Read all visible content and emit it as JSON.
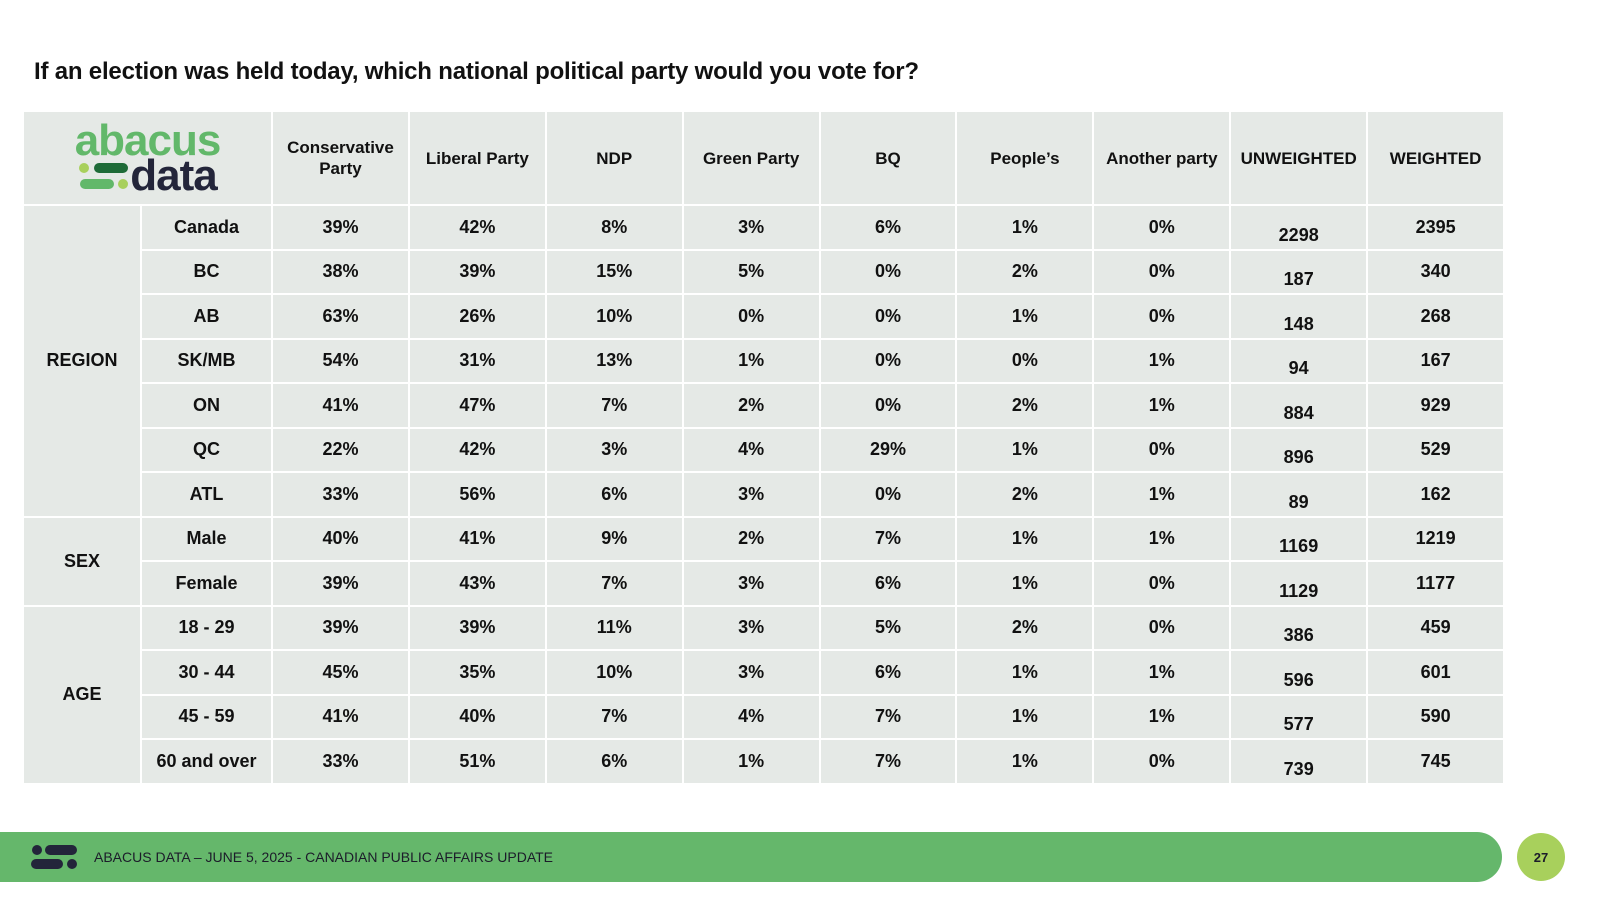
{
  "title": "If an election was held today, which national political party would you vote for?",
  "logo": {
    "top": "abacus",
    "bottom": "data"
  },
  "headers": [
    "Conservative Party",
    "Liberal Party",
    "NDP",
    "Green Party",
    "BQ",
    "People’s",
    "Another party",
    "UNWEIGHTED",
    "WEIGHTED"
  ],
  "groups": [
    {
      "label": "REGION",
      "rows": [
        {
          "label": "Canada",
          "values": [
            "39%",
            "42%",
            "8%",
            "3%",
            "6%",
            "1%",
            "0%",
            "2298",
            "2395"
          ]
        },
        {
          "label": "BC",
          "values": [
            "38%",
            "39%",
            "15%",
            "5%",
            "0%",
            "2%",
            "0%",
            "187",
            "340"
          ]
        },
        {
          "label": "AB",
          "values": [
            "63%",
            "26%",
            "10%",
            "0%",
            "0%",
            "1%",
            "0%",
            "148",
            "268"
          ]
        },
        {
          "label": "SK/MB",
          "values": [
            "54%",
            "31%",
            "13%",
            "1%",
            "0%",
            "0%",
            "1%",
            "94",
            "167"
          ]
        },
        {
          "label": "ON",
          "values": [
            "41%",
            "47%",
            "7%",
            "2%",
            "0%",
            "2%",
            "1%",
            "884",
            "929"
          ]
        },
        {
          "label": "QC",
          "values": [
            "22%",
            "42%",
            "3%",
            "4%",
            "29%",
            "1%",
            "0%",
            "896",
            "529"
          ]
        },
        {
          "label": "ATL",
          "values": [
            "33%",
            "56%",
            "6%",
            "3%",
            "0%",
            "2%",
            "1%",
            "89",
            "162"
          ]
        }
      ]
    },
    {
      "label": "SEX",
      "rows": [
        {
          "label": "Male",
          "values": [
            "40%",
            "41%",
            "9%",
            "2%",
            "7%",
            "1%",
            "1%",
            "1169",
            "1219"
          ]
        },
        {
          "label": "Female",
          "values": [
            "39%",
            "43%",
            "7%",
            "3%",
            "6%",
            "1%",
            "0%",
            "1129",
            "1177"
          ]
        }
      ]
    },
    {
      "label": "AGE",
      "rows": [
        {
          "label": "18 - 29",
          "values": [
            "39%",
            "39%",
            "11%",
            "3%",
            "5%",
            "2%",
            "0%",
            "386",
            "459"
          ]
        },
        {
          "label": "30 - 44",
          "values": [
            "45%",
            "35%",
            "10%",
            "3%",
            "6%",
            "1%",
            "1%",
            "596",
            "601"
          ]
        },
        {
          "label": "45 - 59",
          "values": [
            "41%",
            "40%",
            "7%",
            "4%",
            "7%",
            "1%",
            "1%",
            "577",
            "590"
          ]
        },
        {
          "label": "60 and over",
          "values": [
            "33%",
            "51%",
            "6%",
            "1%",
            "7%",
            "1%",
            "0%",
            "739",
            "745"
          ]
        }
      ]
    }
  ],
  "footer": {
    "text": "ABACUS DATA – JUNE 5, 2025 - CANADIAN PUBLIC AFFAIRS UPDATE",
    "page": "27"
  },
  "colors": {
    "brand_green": "#65b76b",
    "cell_bg": "#e5e9e6",
    "page_badge": "#a8d05c",
    "navy": "#23253a"
  }
}
